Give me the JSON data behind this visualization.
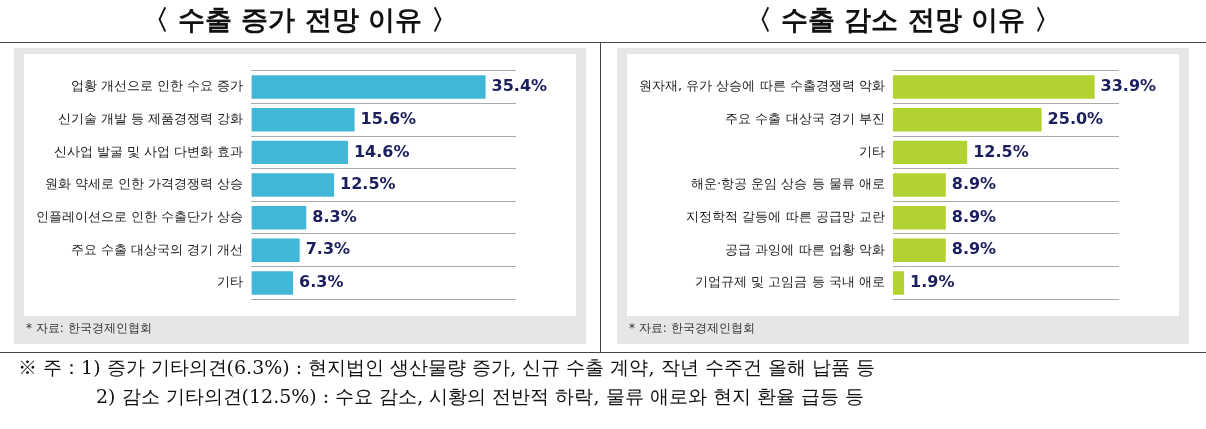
{
  "chart_data": [
    {
      "type": "bar",
      "orientation": "horizontal",
      "title": "〈 수출 증가 전망 이유 〉",
      "categories": [
        "업황 개선으로 인한 수요 증가",
        "신기술 개발 등 제품경쟁력 강화",
        "신사업 발굴 및 사업 다변화 효과",
        "원화 약세로 인한 가격경쟁력 상승",
        "인플레이션으로 인한 수출단가 상승",
        "주요 수출 대상국의 경기 개선",
        "기타"
      ],
      "values": [
        35.4,
        15.6,
        14.6,
        12.5,
        8.3,
        7.3,
        6.3
      ],
      "value_labels": [
        "35.4%",
        "15.6%",
        "14.6%",
        "12.5%",
        "8.3%",
        "7.3%",
        "6.3%"
      ],
      "color": "#42b6d6",
      "xlim": [
        0,
        40
      ],
      "tick_labels": "y",
      "grid": "y",
      "legend": false,
      "annotations": [
        "* 자료: 한국경제인협회"
      ]
    },
    {
      "type": "bar",
      "orientation": "horizontal",
      "title": "〈 수출 감소 전망 이유 〉",
      "categories": [
        "원자재, 유가 상승에 따른 수출경쟁력 악화",
        "주요 수출 대상국 경기 부진",
        "기타",
        "해운·항공 운임 상승 등 물류 애로",
        "지정학적 갈등에 따른 공급망 교란",
        "공급 과잉에 따른 업황 악화",
        "기업규제 및 고임금 등 국내 애로"
      ],
      "values": [
        33.9,
        25.0,
        12.5,
        8.9,
        8.9,
        8.9,
        1.9
      ],
      "value_labels": [
        "33.9%",
        "25.0%",
        "12.5%",
        "8.9%",
        "8.9%",
        "8.9%",
        "1.9%"
      ],
      "color": "#b2d232",
      "xlim": [
        0,
        38
      ],
      "tick_labels": "y",
      "grid": "y",
      "legend": false,
      "annotations": [
        "* 자료: 한국경제인협회",
        "※ 주：1) 증가 기타의견(6.3%) : 현지법인 생산물량 증가, 신규 수출 계약, 작년 수주건 올해 납품 등",
        "2) 감소 기타의견(12.5%) : 수요 감소, 시황의 전반적 하락, 물류 애로와 현지 환율 급등 등"
      ]
    }
  ]
}
